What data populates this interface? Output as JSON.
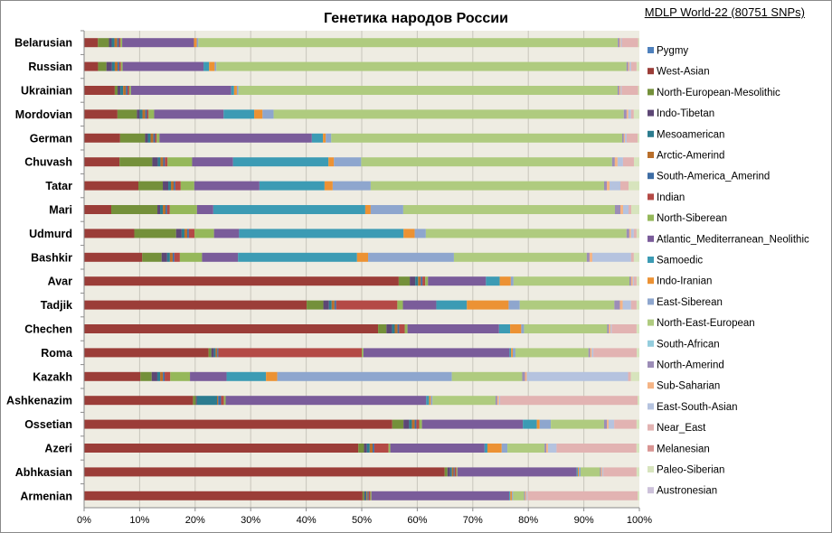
{
  "chart_data": {
    "type": "bar",
    "orientation": "horizontal",
    "stacked": "percent",
    "title": "Генетика народов России",
    "source": "MDLP World-22 (80751 SNPs)",
    "categories": [
      "Belarusian",
      "Russian",
      "Ukrainian",
      "Mordovian",
      "German",
      "Chuvash",
      "Tatar",
      "Mari",
      "Udmurd",
      "Bashkir",
      "Avar",
      "Tadjik",
      "Chechen",
      "Roma",
      "Kazakh",
      "Ashkenazim",
      "Ossetian",
      "Azeri",
      "Abhkasian",
      "Armenian"
    ],
    "xlim": [
      0,
      100
    ],
    "x_ticks": [
      "0%",
      "10%",
      "20%",
      "30%",
      "40%",
      "50%",
      "60%",
      "70%",
      "80%",
      "90%",
      "100%"
    ],
    "grid": "vertical major gridlines",
    "legend_position": "right",
    "series": [
      {
        "name": "Pygmy",
        "color": "#4F81BD",
        "values": [
          0,
          0,
          0,
          0,
          0,
          0,
          0,
          0,
          0,
          0,
          0,
          0,
          0,
          0,
          0,
          0,
          0,
          0,
          0,
          0
        ]
      },
      {
        "name": "West-Asian",
        "color": "#9B3D38",
        "values": [
          2.5,
          2.5,
          5.5,
          6,
          6.5,
          6.5,
          10,
          5,
          9,
          10.5,
          57,
          40,
          53,
          23,
          10,
          19,
          55,
          48,
          65,
          50.5
        ]
      },
      {
        "name": "North-European-Mesolithic",
        "color": "#74903A",
        "values": [
          2,
          1.5,
          0.5,
          3.5,
          4.5,
          6,
          4.5,
          8.5,
          7.5,
          3.5,
          2,
          3,
          1.5,
          0.5,
          2,
          0.5,
          2,
          1,
          0.5,
          0.3
        ]
      },
      {
        "name": "Indo-Tibetan",
        "color": "#5D4775",
        "values": [
          0.5,
          1,
          0.5,
          0.5,
          0.5,
          1,
          1,
          0.5,
          1,
          1,
          1,
          1,
          1,
          0.5,
          1,
          0.2,
          1,
          0.5,
          0.5,
          0.2
        ]
      },
      {
        "name": "Mesoamerican",
        "color": "#2C7C8F",
        "values": [
          0.5,
          0.5,
          0.5,
          0.5,
          0.5,
          0.5,
          0.5,
          0.5,
          0.5,
          0.5,
          0.5,
          0.5,
          0.5,
          0.3,
          0.5,
          3.5,
          0.5,
          0.5,
          0.3,
          0.2
        ]
      },
      {
        "name": "Arctic-Amerind",
        "color": "#B96F2B",
        "values": [
          0.5,
          0.5,
          0.5,
          0.5,
          0.5,
          0.5,
          0.5,
          0.5,
          0.5,
          0.5,
          0.5,
          0.5,
          0.5,
          0.3,
          0.5,
          0.2,
          0.5,
          0.5,
          0.3,
          0.2
        ]
      },
      {
        "name": "South-America_Amerind",
        "color": "#3E6DA5",
        "values": [
          0.3,
          0.3,
          0.3,
          0.3,
          0.3,
          0.3,
          0.3,
          0.3,
          0.3,
          0.3,
          0.3,
          0.3,
          0.3,
          0.2,
          0.3,
          0.5,
          0.3,
          0.3,
          0.2,
          0.2
        ]
      },
      {
        "name": "Indian",
        "color": "#B44A46",
        "values": [
          0.3,
          0.3,
          0.3,
          0.3,
          0.3,
          0.5,
          1,
          0.5,
          1,
          1,
          0.5,
          11,
          1,
          26.5,
          1,
          0.5,
          0.5,
          2.5,
          0.3,
          0.3
        ]
      },
      {
        "name": "North-Siberean",
        "color": "#95B85A",
        "values": [
          0.3,
          0.3,
          0.3,
          1,
          0.5,
          4.5,
          2.5,
          5,
          3.5,
          4,
          0.5,
          1,
          0.5,
          0.3,
          3.5,
          0.3,
          0.5,
          0.3,
          0.2,
          0.2
        ]
      },
      {
        "name": "Atlantic_Mediterranean_Neolithic",
        "color": "#7A5C9A",
        "values": [
          13,
          14.5,
          18,
          12.5,
          27.5,
          7.5,
          12,
          3,
          4.5,
          6.5,
          10.5,
          6,
          16.5,
          27,
          6.5,
          35,
          18,
          16.5,
          21.5,
          25
        ]
      },
      {
        "name": "Samoedic",
        "color": "#3C9BB4",
        "values": [
          0,
          1,
          0.5,
          5.5,
          2,
          17.5,
          12,
          28,
          29.5,
          21.5,
          2.5,
          5.5,
          2,
          0.3,
          7,
          0.5,
          2.5,
          0.5,
          0.2,
          0.2
        ]
      },
      {
        "name": "Indo-Iranian",
        "color": "#EC9234",
        "values": [
          0.5,
          1,
          0.5,
          1.5,
          0.5,
          1,
          1.5,
          1,
          2,
          2,
          2,
          7.5,
          2,
          0.3,
          2,
          0.3,
          0.5,
          2.5,
          0.2,
          0.3
        ]
      },
      {
        "name": "East-Siberean",
        "color": "#8EA6CE",
        "values": [
          0.3,
          0.3,
          0.3,
          2,
          1,
          5,
          7,
          6,
          2,
          15.5,
          0.5,
          2,
          0.5,
          0.5,
          31,
          0.3,
          2,
          1,
          0.3,
          0.2
        ]
      },
      {
        "name": "North-East-European",
        "color": "#AFCB7F",
        "values": [
          76,
          73.5,
          68,
          63,
          52.5,
          46,
          43,
          39,
          36,
          24,
          21,
          17,
          15,
          13.5,
          12.5,
          11,
          9.5,
          6.5,
          3.5,
          2
        ]
      },
      {
        "name": "South-African",
        "color": "#94CDDD",
        "values": [
          0,
          0,
          0,
          0,
          0,
          0,
          0,
          0,
          0,
          0,
          0,
          0,
          0,
          0,
          0,
          0,
          0,
          0,
          0,
          0
        ]
      },
      {
        "name": "North-Amerind",
        "color": "#9C8DB7",
        "values": [
          0.3,
          0.3,
          0.3,
          0.5,
          0.3,
          0.5,
          0.5,
          1,
          0.5,
          0.5,
          0.3,
          1,
          0.3,
          0.3,
          0.5,
          0.3,
          0.5,
          0.3,
          0.2,
          0.2
        ]
      },
      {
        "name": "Sub-Saharian",
        "color": "#F5B485",
        "values": [
          0.2,
          0.2,
          0.2,
          0.3,
          0.2,
          0.5,
          0.5,
          0.5,
          0.3,
          0.5,
          0.3,
          0.5,
          0.3,
          0.3,
          0.3,
          0.3,
          0.3,
          0.3,
          0.2,
          0.2
        ]
      },
      {
        "name": "East-South-Asian",
        "color": "#B5C3DF",
        "values": [
          0.2,
          0.3,
          0.2,
          0.5,
          0.3,
          1,
          2,
          1,
          0.5,
          7,
          0.2,
          1.5,
          0.2,
          0.3,
          18,
          0.2,
          1,
          1.5,
          0.2,
          0.2
        ]
      },
      {
        "name": "Near_East",
        "color": "#E2B3B2",
        "values": [
          3,
          1,
          3,
          0.5,
          2,
          2,
          1.5,
          0.5,
          0.5,
          0.5,
          0.5,
          1,
          4.5,
          8,
          0.5,
          24,
          4,
          14,
          6,
          20
        ]
      },
      {
        "name": "Melanesian",
        "color": "#D99593",
        "values": [
          0,
          0,
          0,
          0,
          0,
          0,
          0,
          0,
          0,
          0,
          0,
          0,
          0,
          0,
          0,
          0,
          0,
          0,
          0,
          0
        ]
      },
      {
        "name": "Paleo-Siberian",
        "color": "#D7E4BD",
        "values": [
          0.2,
          0.5,
          0.2,
          1,
          0.3,
          1,
          2,
          1.5,
          0.5,
          1,
          0.5,
          0.5,
          0.5,
          0.5,
          1.5,
          0.3,
          0.5,
          0.5,
          0.5,
          0.3
        ]
      },
      {
        "name": "Austronesian",
        "color": "#CCC1DA",
        "values": [
          0,
          0,
          0,
          0,
          0,
          0,
          0,
          0,
          0,
          0,
          0,
          0,
          0,
          0,
          0,
          0,
          0,
          0,
          0,
          0
        ]
      }
    ]
  }
}
